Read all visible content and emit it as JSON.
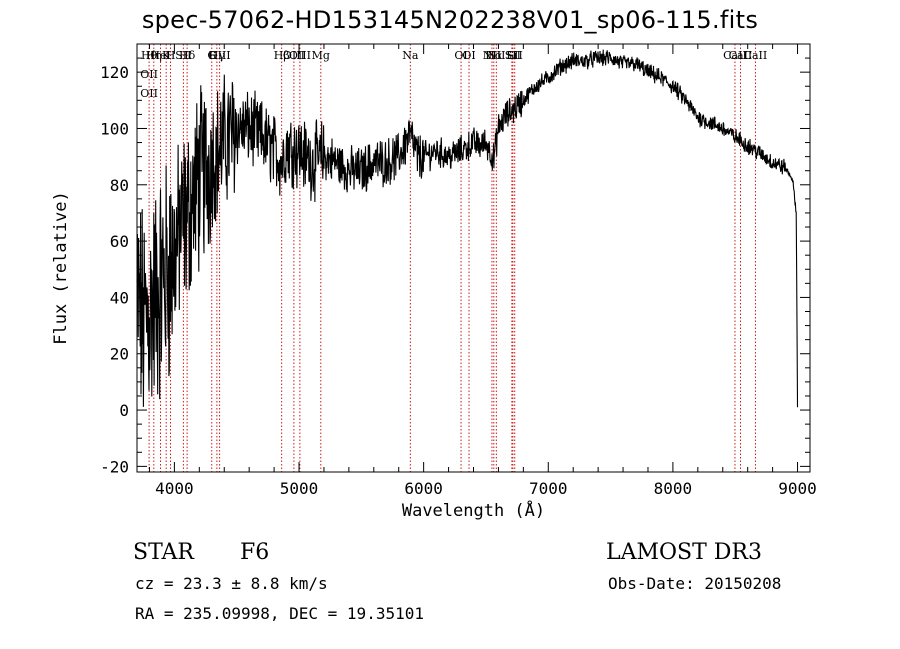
{
  "chart_data": {
    "type": "line",
    "title": "spec-57062-HD153145N202238V01_sp06-115.fits",
    "xlabel": "Wavelength (Å)",
    "ylabel": "Flux (relative)",
    "xlim": [
      3700,
      9100
    ],
    "ylim": [
      -22,
      130
    ],
    "xticks": [
      4000,
      5000,
      6000,
      7000,
      8000,
      9000
    ],
    "yticks": [
      -20,
      0,
      20,
      40,
      60,
      80,
      100,
      120
    ],
    "grid": false,
    "series": [
      {
        "x": [
          3700,
          3750,
          3800,
          3850,
          3900,
          3950,
          4000,
          4050,
          4100,
          4150,
          4200,
          4250,
          4300,
          4350,
          4400,
          4450,
          4500,
          4600,
          4700,
          4800,
          4861,
          4900,
          5000,
          5100,
          5200,
          5300,
          5400,
          5500,
          5600,
          5700,
          5800,
          5890,
          5950,
          6000,
          6100,
          6200,
          6300,
          6400,
          6450,
          6500,
          6563,
          6600,
          6650,
          6700,
          6750,
          6800,
          6900,
          7000,
          7100,
          7200,
          7300,
          7400,
          7500,
          7600,
          7700,
          7800,
          7900,
          8000,
          8100,
          8200,
          8300,
          8400,
          8500,
          8600,
          8700,
          8800,
          8900,
          8960,
          8990,
          9000
        ],
        "y": [
          40,
          30,
          35,
          40,
          45,
          50,
          55,
          65,
          68,
          75,
          82,
          85,
          90,
          92,
          95,
          97,
          100,
          100,
          97,
          92,
          88,
          94,
          92,
          88,
          90,
          88,
          85,
          85,
          88,
          88,
          90,
          98,
          90,
          90,
          92,
          90,
          92,
          95,
          94,
          95,
          89,
          100,
          104,
          106,
          108,
          110,
          115,
          118,
          122,
          124,
          124,
          125,
          125,
          123,
          123,
          120,
          118,
          115,
          110,
          104,
          102,
          100,
          97,
          94,
          91,
          88,
          86,
          82,
          70,
          3
        ]
      }
    ],
    "lines": [
      {
        "x": 3797,
        "labels": [
          "Hθ",
          "OII",
          "OII"
        ]
      },
      {
        "x": 3835,
        "labels": [
          "Hη"
        ]
      },
      {
        "x": 3889,
        "labels": [
          "HeI"
        ]
      },
      {
        "x": 3934,
        "labels": [
          "K"
        ]
      },
      {
        "x": 3969,
        "labels": [
          "H"
        ]
      },
      {
        "x": 4072,
        "labels": [
          "SII"
        ]
      },
      {
        "x": 4102,
        "labels": [
          "Hδ"
        ]
      },
      {
        "x": 4300,
        "labels": [
          "G"
        ]
      },
      {
        "x": 4341,
        "labels": [
          "Hγ"
        ]
      },
      {
        "x": 4363,
        "labels": [
          "OIII"
        ]
      },
      {
        "x": 4861,
        "labels": [
          "Hβ"
        ]
      },
      {
        "x": 4959,
        "labels": [
          "OIII"
        ]
      },
      {
        "x": 5007,
        "labels": [
          "OIII"
        ]
      },
      {
        "x": 5175,
        "labels": [
          "Mg"
        ]
      },
      {
        "x": 5893,
        "labels": [
          "Na"
        ]
      },
      {
        "x": 6300,
        "labels": [
          "OI"
        ]
      },
      {
        "x": 6364,
        "labels": [
          "OI"
        ]
      },
      {
        "x": 6548,
        "labels": [
          "NII"
        ]
      },
      {
        "x": 6563,
        "labels": [
          "Hα"
        ]
      },
      {
        "x": 6583,
        "labels": [
          "NII"
        ]
      },
      {
        "x": 6708,
        "labels": [
          "Li"
        ]
      },
      {
        "x": 6716,
        "labels": [
          "SII"
        ]
      },
      {
        "x": 6731,
        "labels": [
          "SII"
        ]
      },
      {
        "x": 8498,
        "labels": [
          "CaII"
        ]
      },
      {
        "x": 8542,
        "labels": [
          "CaII"
        ]
      },
      {
        "x": 8662,
        "labels": [
          "CaII"
        ]
      }
    ],
    "line_color": "#cc0000"
  },
  "info": {
    "object_class": "STAR",
    "subclass": "F6",
    "cz": "cz = 23.3 ± 8.8 km/s",
    "coords": "RA = 235.09998, DEC =  19.35101",
    "survey": "LAMOST DR3",
    "obs_date": "Obs-Date: 20150208"
  }
}
